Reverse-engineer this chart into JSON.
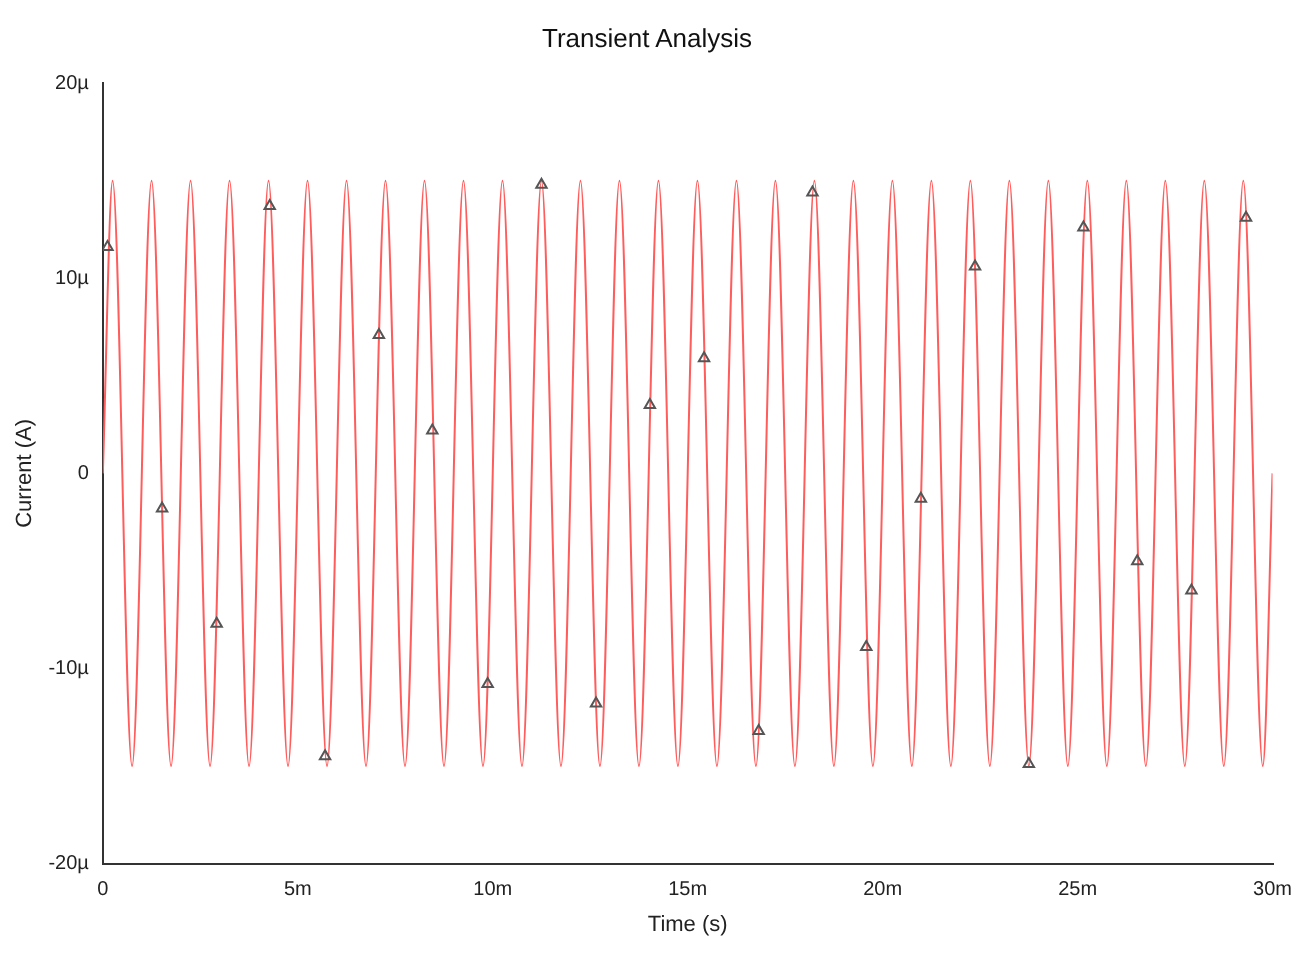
{
  "chart_data": {
    "type": "line",
    "title": "Transient Analysis",
    "xlabel": "Time (s)",
    "ylabel": "Current (A)",
    "xlim": [
      0,
      30
    ],
    "xticks": [
      0,
      {
        "value": 5,
        "label": "5m"
      },
      {
        "value": 10,
        "label": "10m"
      },
      {
        "value": 15,
        "label": "15m"
      },
      {
        "value": 20,
        "label": "20m"
      },
      {
        "value": 25,
        "label": "25m"
      },
      {
        "value": 30,
        "label": "30m"
      }
    ],
    "ylim": [
      -20,
      20
    ],
    "yticks": [
      {
        "value": -20,
        "label": "-20µ"
      },
      {
        "value": -10,
        "label": "-10µ"
      },
      0,
      {
        "value": 10,
        "label": "10µ"
      },
      {
        "value": 20,
        "label": "20µ"
      }
    ],
    "grid": false,
    "legend": false,
    "series": [
      {
        "color": "#ff5c5c",
        "marker": "none",
        "x": [
          0,
          0.25,
          0.75,
          1.25,
          1.75,
          2.25,
          2.75,
          3.25,
          3.75,
          4.25,
          4.75,
          5.25,
          5.75,
          6.25,
          6.75,
          7.25,
          7.75,
          8.25,
          8.75,
          9.25,
          9.75,
          10.25,
          10.75,
          11.25,
          11.75,
          12.25,
          12.75,
          13.25,
          13.75,
          14.25,
          14.75,
          15.25,
          15.75,
          16.25,
          16.75,
          17.25,
          17.75,
          18.25,
          18.75,
          19.25,
          19.75,
          20.25,
          20.75,
          21.25,
          21.75,
          22.25,
          22.75,
          23.25,
          23.75,
          24.25,
          24.75,
          25.25,
          25.75,
          26.25,
          26.75,
          27.25,
          27.75,
          28.25,
          28.75,
          29.25,
          29.75,
          30
        ],
        "values": [
          0,
          15,
          -15,
          15,
          -15,
          15,
          -15,
          15,
          -15,
          15,
          -15,
          15,
          -15,
          15,
          -15,
          15,
          -15,
          15,
          -15,
          15,
          -15,
          15,
          -15,
          15,
          -15,
          15,
          -15,
          15,
          -15,
          15,
          -15,
          15,
          -15,
          15,
          -15,
          15,
          -15,
          15,
          -15,
          15,
          -15,
          15,
          -15,
          15,
          -15,
          15,
          -15,
          15,
          -15,
          15,
          -15,
          15,
          -15,
          15,
          -15,
          15,
          -15,
          15,
          -15,
          15,
          -15,
          0
        ]
      },
      {
        "type": "scatter",
        "color": "#555555",
        "marker": "triangle",
        "x": [
          0.12,
          1.52,
          2.92,
          4.28,
          5.7,
          7.08,
          8.45,
          9.87,
          11.25,
          12.65,
          14.03,
          15.42,
          16.82,
          18.2,
          19.58,
          20.98,
          22.37,
          23.75,
          25.15,
          26.53,
          27.92,
          29.32
        ],
        "values": [
          11.6,
          -1.8,
          -7.7,
          13.7,
          -14.5,
          7.1,
          2.2,
          -10.8,
          14.8,
          -11.8,
          3.5,
          5.9,
          -13.2,
          14.4,
          -8.9,
          -1.3,
          10.6,
          -14.9,
          12.6,
          -4.5,
          -6,
          13.1
        ]
      }
    ]
  }
}
